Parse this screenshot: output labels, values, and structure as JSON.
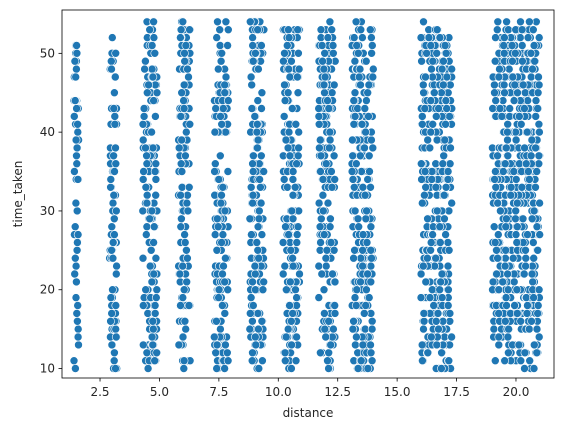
{
  "chart_data": {
    "type": "scatter",
    "title": "",
    "xlabel": "distance",
    "ylabel": "time_taken",
    "xlim": [
      0.9,
      21.6
    ],
    "ylim": [
      8.8,
      55.5
    ],
    "x_ticks": [
      2.5,
      5.0,
      7.5,
      10.0,
      12.5,
      15.0,
      17.5,
      20.0
    ],
    "x_tick_labels": [
      "2.5",
      "5.0",
      "7.5",
      "10.0",
      "12.5",
      "15.0",
      "17.5",
      "20.0"
    ],
    "y_ticks": [
      10,
      20,
      30,
      40,
      50
    ],
    "y_tick_labels": [
      "10",
      "20",
      "30",
      "40",
      "50"
    ],
    "grid": false,
    "legend": "none",
    "marker_color": "#1f77b4",
    "marker_edge_color": "#ffffff",
    "clusters": [
      {
        "x_min": 1.4,
        "x_max": 1.6,
        "y_min": 10,
        "y_max": 53
      },
      {
        "x_min": 2.9,
        "x_max": 3.2,
        "y_min": 10,
        "y_max": 53
      },
      {
        "x_min": 4.3,
        "x_max": 4.9,
        "y_min": 10,
        "y_max": 54
      },
      {
        "x_min": 5.8,
        "x_max": 6.3,
        "y_min": 10,
        "y_max": 54
      },
      {
        "x_min": 7.3,
        "x_max": 7.9,
        "y_min": 10,
        "y_max": 54
      },
      {
        "x_min": 8.8,
        "x_max": 9.4,
        "y_min": 10,
        "y_max": 54
      },
      {
        "x_min": 10.2,
        "x_max": 10.9,
        "y_min": 10,
        "y_max": 54
      },
      {
        "x_min": 11.7,
        "x_max": 12.4,
        "y_min": 10,
        "y_max": 54
      },
      {
        "x_min": 13.1,
        "x_max": 14.0,
        "y_min": 10,
        "y_max": 54
      },
      {
        "x_min": 16.0,
        "x_max": 17.3,
        "y_min": 10,
        "y_max": 54
      },
      {
        "x_min": 19.0,
        "x_max": 21.0,
        "y_min": 10,
        "y_max": 54
      }
    ]
  }
}
